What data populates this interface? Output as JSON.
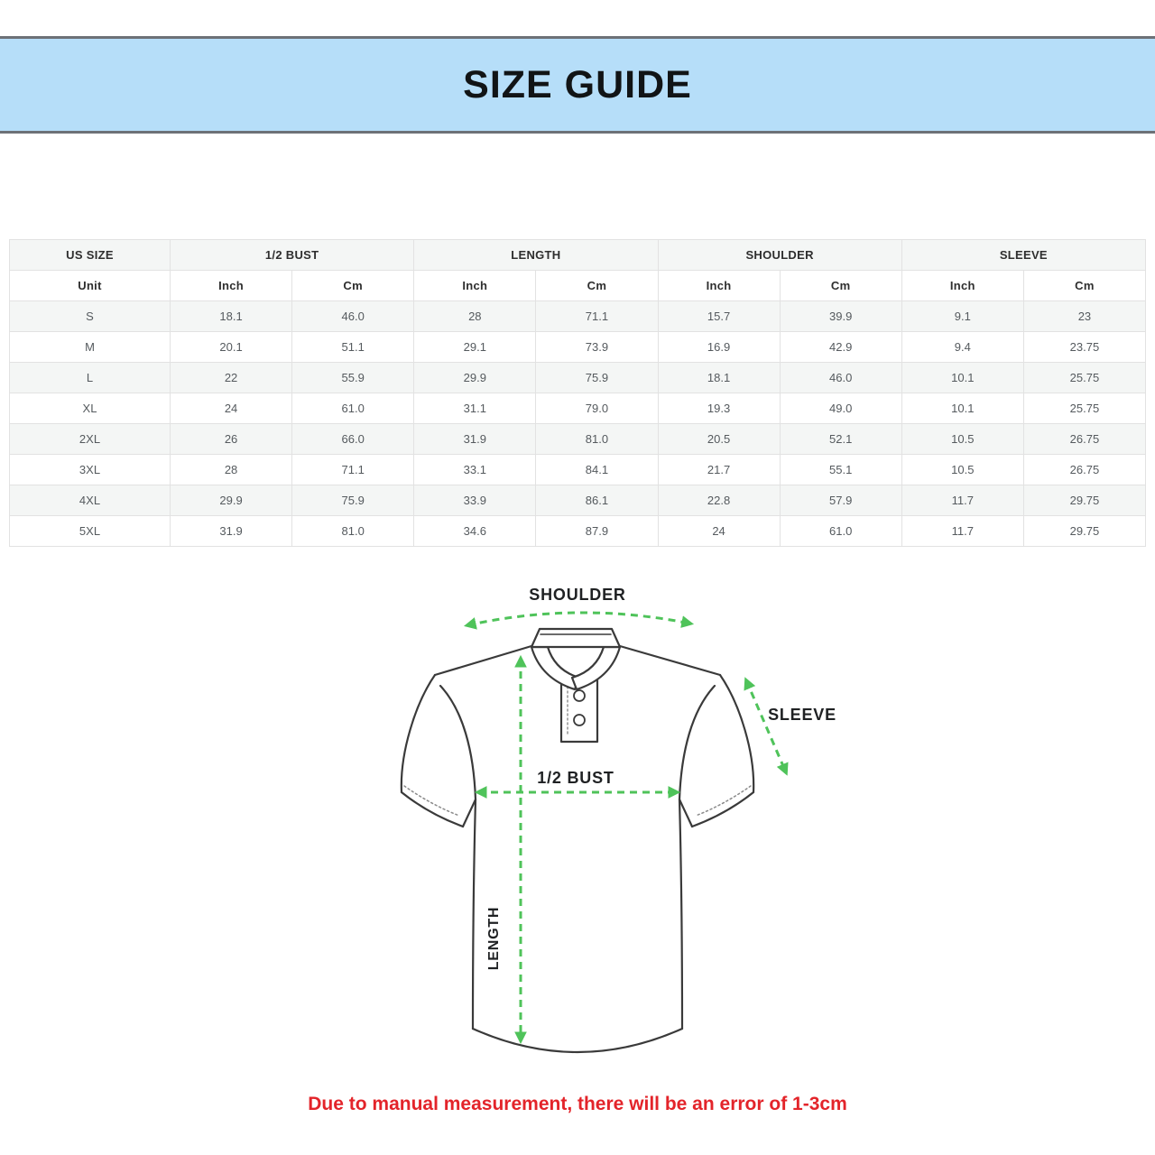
{
  "banner": {
    "title": "SIZE GUIDE",
    "background": "#b6def9"
  },
  "table": {
    "group_headers": [
      "US SIZE",
      "1/2 BUST",
      "LENGTH",
      "SHOULDER",
      "SLEEVE"
    ],
    "unit_row": [
      "Unit",
      "Inch",
      "Cm",
      "Inch",
      "Cm",
      "Inch",
      "Cm",
      "Inch",
      "Cm"
    ],
    "rows": [
      [
        "S",
        "18.1",
        "46.0",
        "28",
        "71.1",
        "15.7",
        "39.9",
        "9.1",
        "23"
      ],
      [
        "M",
        "20.1",
        "51.1",
        "29.1",
        "73.9",
        "16.9",
        "42.9",
        "9.4",
        "23.75"
      ],
      [
        "L",
        "22",
        "55.9",
        "29.9",
        "75.9",
        "18.1",
        "46.0",
        "10.1",
        "25.75"
      ],
      [
        "XL",
        "24",
        "61.0",
        "31.1",
        "79.0",
        "19.3",
        "49.0",
        "10.1",
        "25.75"
      ],
      [
        "2XL",
        "26",
        "66.0",
        "31.9",
        "81.0",
        "20.5",
        "52.1",
        "10.5",
        "26.75"
      ],
      [
        "3XL",
        "28",
        "71.1",
        "33.1",
        "84.1",
        "21.7",
        "55.1",
        "10.5",
        "26.75"
      ],
      [
        "4XL",
        "29.9",
        "75.9",
        "33.9",
        "86.1",
        "22.8",
        "57.9",
        "11.7",
        "29.75"
      ],
      [
        "5XL",
        "31.9",
        "81.0",
        "34.6",
        "87.9",
        "24",
        "61.0",
        "11.7",
        "29.75"
      ]
    ]
  },
  "diagram": {
    "labels": {
      "shoulder": "SHOULDER",
      "sleeve": "SLEEVE",
      "half_bust": "1/2 BUST",
      "length": "LENGTH"
    },
    "arrow_color": "#4fc35a",
    "outline_color": "#3a3a3a"
  },
  "note": {
    "text": "Due to manual measurement, there will be an error of 1-3cm",
    "color": "#e3242a"
  }
}
